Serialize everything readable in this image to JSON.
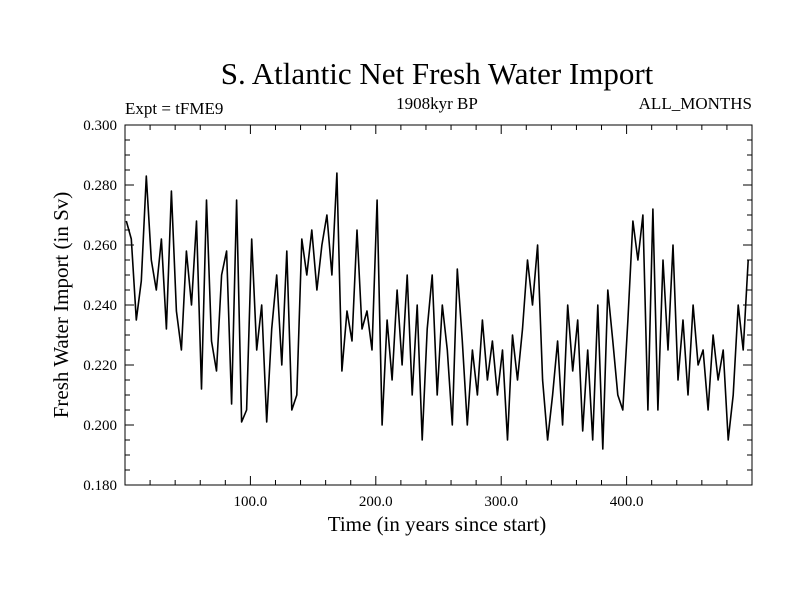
{
  "chart_data": {
    "type": "line",
    "title": "S. Atlantic Net Fresh Water Import",
    "subtitle_left": "Expt = tFME9",
    "subtitle_center": "1908kyr BP",
    "subtitle_right": "ALL_MONTHS",
    "xlabel": "Time (in years since start)",
    "ylabel": "Fresh Water Import (in Sv)",
    "xlim": [
      0,
      500
    ],
    "ylim": [
      0.18,
      0.3
    ],
    "x_major_ticks": [
      100,
      200,
      300,
      400
    ],
    "x_tick_labels": [
      "100.0",
      "200.0",
      "300.0",
      "400.0"
    ],
    "x_minor_step": 20,
    "y_major_ticks": [
      0.18,
      0.2,
      0.22,
      0.24,
      0.26,
      0.28,
      0.3
    ],
    "y_tick_labels": [
      "0.180",
      "0.200",
      "0.220",
      "0.240",
      "0.260",
      "0.280",
      "0.300"
    ],
    "y_minor_step": 0.005,
    "grid": false,
    "legend": "none",
    "series": [
      {
        "name": "Fresh Water Import",
        "color": "#000000",
        "x_start": 1,
        "x_step": 4,
        "values": [
          0.268,
          0.262,
          0.235,
          0.248,
          0.283,
          0.255,
          0.245,
          0.262,
          0.232,
          0.278,
          0.238,
          0.225,
          0.258,
          0.24,
          0.268,
          0.212,
          0.275,
          0.228,
          0.218,
          0.25,
          0.258,
          0.207,
          0.275,
          0.201,
          0.205,
          0.262,
          0.225,
          0.24,
          0.201,
          0.232,
          0.25,
          0.22,
          0.258,
          0.205,
          0.21,
          0.262,
          0.25,
          0.265,
          0.245,
          0.26,
          0.27,
          0.25,
          0.284,
          0.218,
          0.238,
          0.228,
          0.265,
          0.232,
          0.238,
          0.225,
          0.275,
          0.2,
          0.235,
          0.215,
          0.245,
          0.22,
          0.25,
          0.21,
          0.24,
          0.195,
          0.232,
          0.25,
          0.21,
          0.24,
          0.225,
          0.2,
          0.252,
          0.228,
          0.2,
          0.225,
          0.21,
          0.235,
          0.215,
          0.228,
          0.21,
          0.225,
          0.195,
          0.23,
          0.215,
          0.232,
          0.255,
          0.24,
          0.26,
          0.215,
          0.195,
          0.21,
          0.228,
          0.2,
          0.24,
          0.218,
          0.235,
          0.198,
          0.225,
          0.195,
          0.24,
          0.192,
          0.245,
          0.228,
          0.21,
          0.205,
          0.235,
          0.268,
          0.255,
          0.27,
          0.205,
          0.272,
          0.205,
          0.255,
          0.225,
          0.26,
          0.215,
          0.235,
          0.21,
          0.24,
          0.22,
          0.225,
          0.205,
          0.23,
          0.215,
          0.225,
          0.195,
          0.21,
          0.24,
          0.225,
          0.255
        ]
      }
    ]
  }
}
